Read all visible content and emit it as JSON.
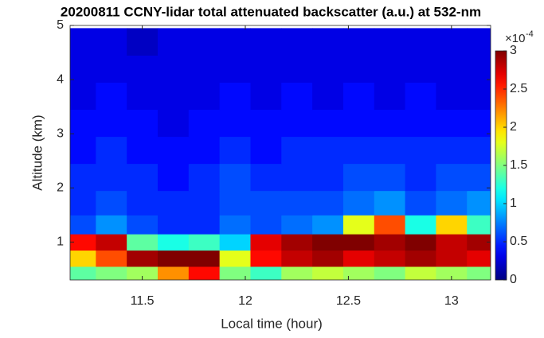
{
  "chart_data": {
    "type": "heatmap",
    "title": "20200811 CCNY-lidar total attenuated backscatter (a.u.) at 532-nm",
    "x_label": "Local time (hour)",
    "y_label": "Altitude (km)",
    "x": [
      11.2,
      11.35,
      11.5,
      11.65,
      11.8,
      11.95,
      12.1,
      12.25,
      12.4,
      12.55,
      12.7,
      12.85,
      13.0,
      13.15
    ],
    "y": [
      0.4,
      0.7,
      1.0,
      1.3,
      1.7,
      2.2,
      2.7,
      3.2,
      3.7,
      4.2,
      4.7
    ],
    "z": [
      [
        1.4,
        1.5,
        1.6,
        2.2,
        2.6,
        1.5,
        1.3,
        1.6,
        1.7,
        1.6,
        1.5,
        1.7,
        1.6,
        1.5
      ],
      [
        2.0,
        2.4,
        2.9,
        3.0,
        3.0,
        1.8,
        2.6,
        2.8,
        2.9,
        2.7,
        2.8,
        2.9,
        2.8,
        2.7
      ],
      [
        2.6,
        2.8,
        1.4,
        1.2,
        1.3,
        1.0,
        2.7,
        2.9,
        3.0,
        3.0,
        2.9,
        3.0,
        2.8,
        2.9
      ],
      [
        0.6,
        0.8,
        0.6,
        0.5,
        0.5,
        0.7,
        0.6,
        0.7,
        0.8,
        1.8,
        2.4,
        1.2,
        2.0,
        1.3
      ],
      [
        0.5,
        0.6,
        0.5,
        0.5,
        0.5,
        0.6,
        0.6,
        0.6,
        0.6,
        0.7,
        0.8,
        0.6,
        0.7,
        0.8
      ],
      [
        0.5,
        0.5,
        0.5,
        0.4,
        0.5,
        0.6,
        0.5,
        0.5,
        0.5,
        0.6,
        0.6,
        0.5,
        0.6,
        0.6
      ],
      [
        0.4,
        0.5,
        0.4,
        0.4,
        0.4,
        0.5,
        0.4,
        0.5,
        0.5,
        0.5,
        0.5,
        0.5,
        0.5,
        0.5
      ],
      [
        0.4,
        0.4,
        0.4,
        0.3,
        0.4,
        0.4,
        0.4,
        0.4,
        0.4,
        0.4,
        0.4,
        0.4,
        0.4,
        0.4
      ],
      [
        0.3,
        0.4,
        0.3,
        0.3,
        0.3,
        0.4,
        0.3,
        0.4,
        0.3,
        0.4,
        0.3,
        0.4,
        0.3,
        0.3
      ],
      [
        0.3,
        0.3,
        0.3,
        0.3,
        0.3,
        0.3,
        0.3,
        0.3,
        0.3,
        0.3,
        0.3,
        0.3,
        0.3,
        0.3
      ],
      [
        0.3,
        0.3,
        0.2,
        0.3,
        0.3,
        0.3,
        0.3,
        0.3,
        0.3,
        0.3,
        0.3,
        0.3,
        0.3,
        0.3
      ]
    ],
    "xlim": [
      11.15,
      13.19
    ],
    "xticks": [
      11.5,
      12,
      12.5,
      13
    ],
    "ylim": [
      0.3,
      5
    ],
    "yticks": [
      1,
      2,
      3,
      4,
      5
    ],
    "colormap": "jet",
    "clim": [
      0,
      3
    ],
    "cticks": [
      0,
      0.5,
      1,
      1.5,
      2,
      2.5,
      3
    ],
    "colorbar_multiplier": {
      "base": "×10",
      "exponent": "-4"
    }
  }
}
